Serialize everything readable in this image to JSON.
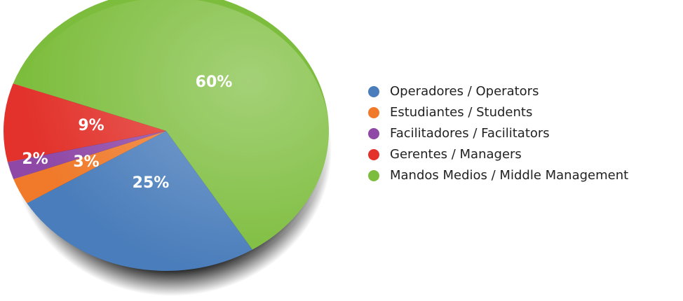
{
  "chart_data": {
    "type": "pie",
    "categories": [
      "Operadores / Operators",
      "Estudiantes / Students",
      "Facilitadores / Facilitators",
      "Gerentes / Managers",
      "Mandos Medios / Middle Management"
    ],
    "values": [
      25,
      3,
      2,
      9,
      60
    ],
    "value_labels": [
      "25%",
      "3%",
      "2%",
      "9%",
      "60%"
    ],
    "colors": [
      "#4a7dbb",
      "#f07a2a",
      "#8f48a6",
      "#e2322b",
      "#7dbd3d"
    ],
    "legend": "right"
  }
}
